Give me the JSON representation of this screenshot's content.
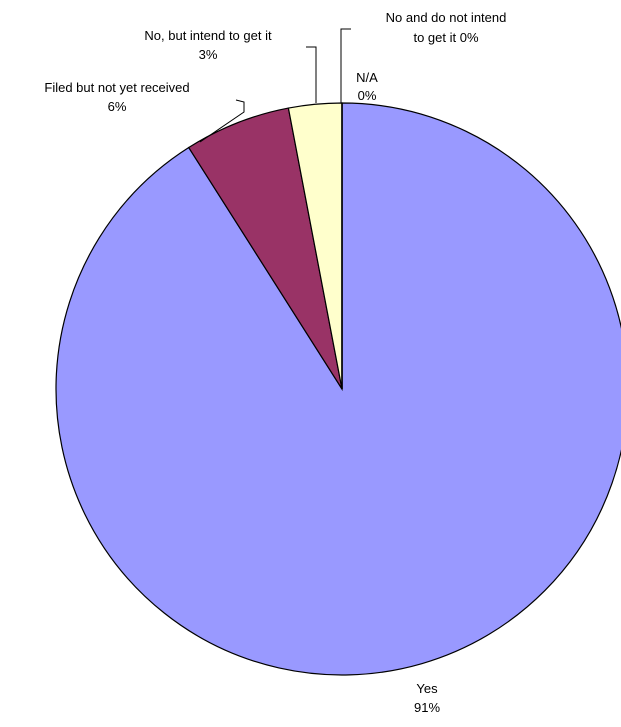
{
  "chart_data": {
    "type": "pie",
    "title": "",
    "start_angle": "12 o'clock",
    "direction": "clockwise",
    "slices": [
      {
        "label": "Yes",
        "value": 91,
        "value_label": "91%",
        "color": "#9999FF"
      },
      {
        "label": "Filed but not yet received",
        "value": 6,
        "value_label": "6%",
        "color": "#993366"
      },
      {
        "label": "No, but intend to get it",
        "value": 3,
        "value_label": "3%",
        "color": "#FFFFCC"
      },
      {
        "label": "No and do not intend to get it",
        "label_lines": [
          "No and do not intend",
          "to get it  0%"
        ],
        "value": 0,
        "value_label": "0%",
        "color": "#FFFFFF"
      },
      {
        "label": "N/A",
        "value": 0,
        "value_label": "0%",
        "color": "#FFFFFF"
      }
    ]
  }
}
